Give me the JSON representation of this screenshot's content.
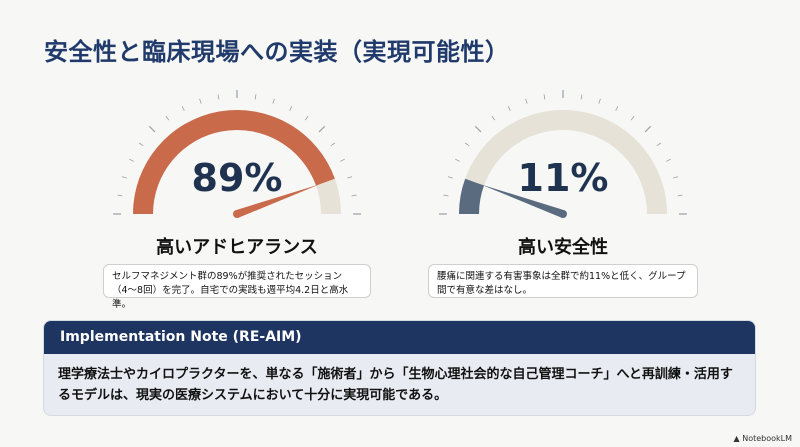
{
  "slide": {
    "title": "安全性と臨床現場への実装（実現可能性）"
  },
  "gauges": [
    {
      "value_text": "89%",
      "value": 89,
      "label": "高いアドヒアランス",
      "note": "セルフマネジメント群の89%が推奨されたセッション（4〜8回）を完了。自宅での実践も週平均4.2日と高水準。",
      "fill_color": "#c96a4b",
      "track_color": "#e6e2d8",
      "needle_color": "#c96a4b"
    },
    {
      "value_text": "11%",
      "value": 11,
      "label": "高い安全性",
      "note": "腰痛に関連する有害事象は全群で約11%と低く、グループ間で有意な差はなし。",
      "fill_color": "#5a6b80",
      "track_color": "#e6e2d8",
      "needle_color": "#5a6b80"
    }
  ],
  "implementation": {
    "heading": "Implementation Note (RE-AIM)",
    "body": "理学療法士やカイロプラクターを、単なる「施術者」から「生物心理社会的な自己管理コーチ」へと再訓練・活用するモデルは、現実の医療システムにおいて十分に実現可能である。"
  },
  "branding": {
    "label": "NotebookLM"
  }
}
